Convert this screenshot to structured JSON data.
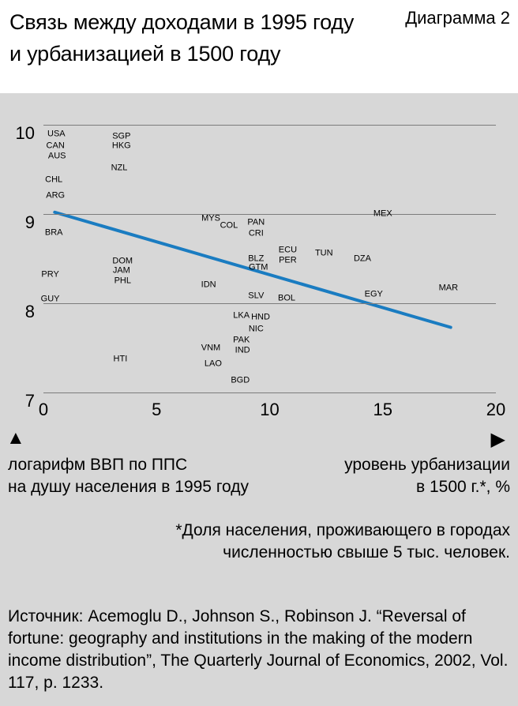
{
  "header": {
    "title": "Связь между доходами в 1995 году\nи урбанизацией в 1500 году",
    "diagram_label": "Диаграмма 2"
  },
  "axes": {
    "y_label": "логарифм ВВП по ППС\nна душу населения в 1995 году",
    "x_label": "уровень урбанизации\nв 1500 г.*, %",
    "y_arrow": "▲",
    "x_arrow": "▶"
  },
  "footnote": "*Доля населения, проживающего в городах\nчисленностью свыше 5 тыс. человек.",
  "source": "Источник: Acemoglu D., Johnson S., Robinson J. “Reversal of fortune: geography and institutions in the making of the modern income distribution”, The Quarterly Journal of Economics, 2002, Vol. 117, p. 1233.",
  "chart_data": {
    "type": "scatter",
    "title": "Связь между доходами в 1995 году и урбанизацией в 1500 году",
    "xlabel": "уровень урбанизации в 1500 г.*, %",
    "ylabel": "логарифм ВВП по ППС на душу населения в 1995 году",
    "xlim": [
      0,
      20
    ],
    "ylim": [
      7,
      10
    ],
    "x_ticks": [
      0,
      5,
      10,
      15,
      20
    ],
    "y_ticks": [
      10,
      9,
      8,
      7
    ],
    "grid": "horizontal",
    "legend": "none",
    "point_marker": "country-code-text",
    "trend_line": {
      "x1": 0.5,
      "y1": 9.02,
      "x2": 18.0,
      "y2": 7.73,
      "color": "#1a7cc1",
      "width": 4
    },
    "points": [
      {
        "code": "USA",
        "x": 0.57,
        "y": 9.89
      },
      {
        "code": "CAN",
        "x": 0.53,
        "y": 9.76
      },
      {
        "code": "AUS",
        "x": 0.6,
        "y": 9.65
      },
      {
        "code": "SGP",
        "x": 3.45,
        "y": 9.87
      },
      {
        "code": "HKG",
        "x": 3.45,
        "y": 9.76
      },
      {
        "code": "NZL",
        "x": 3.35,
        "y": 9.51
      },
      {
        "code": "CHL",
        "x": 0.46,
        "y": 9.38
      },
      {
        "code": "ARG",
        "x": 0.53,
        "y": 9.2
      },
      {
        "code": "MEX",
        "x": 15.0,
        "y": 9.0
      },
      {
        "code": "MYS",
        "x": 7.4,
        "y": 8.95
      },
      {
        "code": "COL",
        "x": 8.2,
        "y": 8.87
      },
      {
        "code": "PAN",
        "x": 9.4,
        "y": 8.9
      },
      {
        "code": "CRI",
        "x": 9.4,
        "y": 8.78
      },
      {
        "code": "BRA",
        "x": 0.46,
        "y": 8.79
      },
      {
        "code": "ECU",
        "x": 10.8,
        "y": 8.59
      },
      {
        "code": "PER",
        "x": 10.8,
        "y": 8.48
      },
      {
        "code": "TUN",
        "x": 12.4,
        "y": 8.56
      },
      {
        "code": "DZA",
        "x": 14.1,
        "y": 8.5
      },
      {
        "code": "BLZ",
        "x": 9.4,
        "y": 8.5
      },
      {
        "code": "GTM",
        "x": 9.5,
        "y": 8.4
      },
      {
        "code": "DOM",
        "x": 3.5,
        "y": 8.47
      },
      {
        "code": "JAM",
        "x": 3.45,
        "y": 8.36
      },
      {
        "code": "PHL",
        "x": 3.5,
        "y": 8.25
      },
      {
        "code": "PRY",
        "x": 0.3,
        "y": 8.32
      },
      {
        "code": "IDN",
        "x": 7.3,
        "y": 8.2
      },
      {
        "code": "MAR",
        "x": 17.9,
        "y": 8.17
      },
      {
        "code": "SLV",
        "x": 9.4,
        "y": 8.08
      },
      {
        "code": "BOL",
        "x": 10.75,
        "y": 8.05
      },
      {
        "code": "EGY",
        "x": 14.6,
        "y": 8.1
      },
      {
        "code": "GUY",
        "x": 0.3,
        "y": 8.04
      },
      {
        "code": "LKA",
        "x": 8.75,
        "y": 7.86
      },
      {
        "code": "HND",
        "x": 9.6,
        "y": 7.84
      },
      {
        "code": "NIC",
        "x": 9.4,
        "y": 7.71
      },
      {
        "code": "PAK",
        "x": 8.75,
        "y": 7.58
      },
      {
        "code": "IND",
        "x": 8.8,
        "y": 7.47
      },
      {
        "code": "VNM",
        "x": 7.4,
        "y": 7.5
      },
      {
        "code": "LAO",
        "x": 7.5,
        "y": 7.32
      },
      {
        "code": "HTI",
        "x": 3.4,
        "y": 7.37
      },
      {
        "code": "BGD",
        "x": 8.7,
        "y": 7.13
      }
    ]
  }
}
